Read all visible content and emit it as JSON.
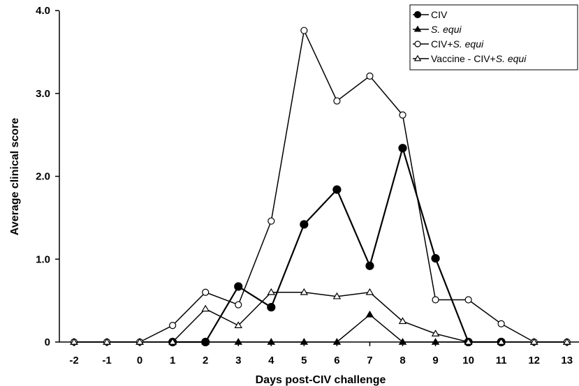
{
  "chart_data": {
    "type": "line",
    "title": "",
    "xlabel": "Days post-CIV challenge",
    "ylabel": "Average clinical score",
    "x": [
      -2,
      -1,
      0,
      1,
      2,
      3,
      4,
      5,
      6,
      7,
      8,
      9,
      10,
      11,
      12,
      13
    ],
    "x_tick_labels": [
      "-2",
      "-1",
      "0",
      "1",
      "2",
      "3",
      "4",
      "5",
      "6",
      "7",
      "8",
      "9",
      "10",
      "11",
      "12",
      "13"
    ],
    "y_tick_labels": [
      "0",
      "1.0",
      "2.0",
      "3.0",
      "4.0"
    ],
    "y_ticks": [
      0,
      1,
      2,
      3,
      4
    ],
    "ylim": [
      0,
      4
    ],
    "grid": false,
    "legend_position": "top-right",
    "series": [
      {
        "name": "CIV",
        "name_plain": "CIV",
        "name_italic": "",
        "marker": "filled-circle",
        "x": [
          1,
          2,
          3,
          4,
          5,
          6,
          7,
          8,
          9,
          10,
          11
        ],
        "values": [
          0,
          0,
          0.67,
          0.42,
          1.42,
          1.84,
          0.92,
          2.34,
          1.01,
          0,
          0
        ]
      },
      {
        "name": "S. equi",
        "name_plain": "",
        "name_italic": "S. equi",
        "marker": "filled-triangle",
        "x": [
          -2,
          -1,
          0,
          1,
          2,
          3,
          4,
          5,
          6,
          7,
          8,
          9,
          10,
          11,
          12,
          13
        ],
        "values": [
          0,
          0,
          0,
          0,
          0,
          0,
          0,
          0,
          0,
          0.33,
          0,
          0,
          0,
          0,
          0,
          0
        ]
      },
      {
        "name": "CIV+S. equi",
        "name_plain": "CIV+",
        "name_italic": "S. equi",
        "marker": "open-circle",
        "x": [
          -2,
          -1,
          0,
          1,
          2,
          3,
          4,
          5,
          6,
          7,
          8,
          9,
          10,
          11,
          12,
          13
        ],
        "values": [
          0,
          0,
          0,
          0.2,
          0.6,
          0.45,
          1.46,
          3.76,
          2.91,
          3.21,
          2.74,
          0.51,
          0.51,
          0.22,
          0,
          0
        ]
      },
      {
        "name": "Vaccine - CIV+S. equi",
        "name_plain": "Vaccine - CIV+",
        "name_italic": "S. equi",
        "marker": "open-triangle",
        "x": [
          -2,
          -1,
          0,
          1,
          2,
          3,
          4,
          5,
          6,
          7,
          8,
          9,
          10,
          11,
          12,
          13
        ],
        "values": [
          0,
          0,
          0,
          0,
          0.4,
          0.2,
          0.6,
          0.6,
          0.55,
          0.6,
          0.25,
          0.1,
          0,
          0,
          0,
          0
        ]
      }
    ]
  }
}
